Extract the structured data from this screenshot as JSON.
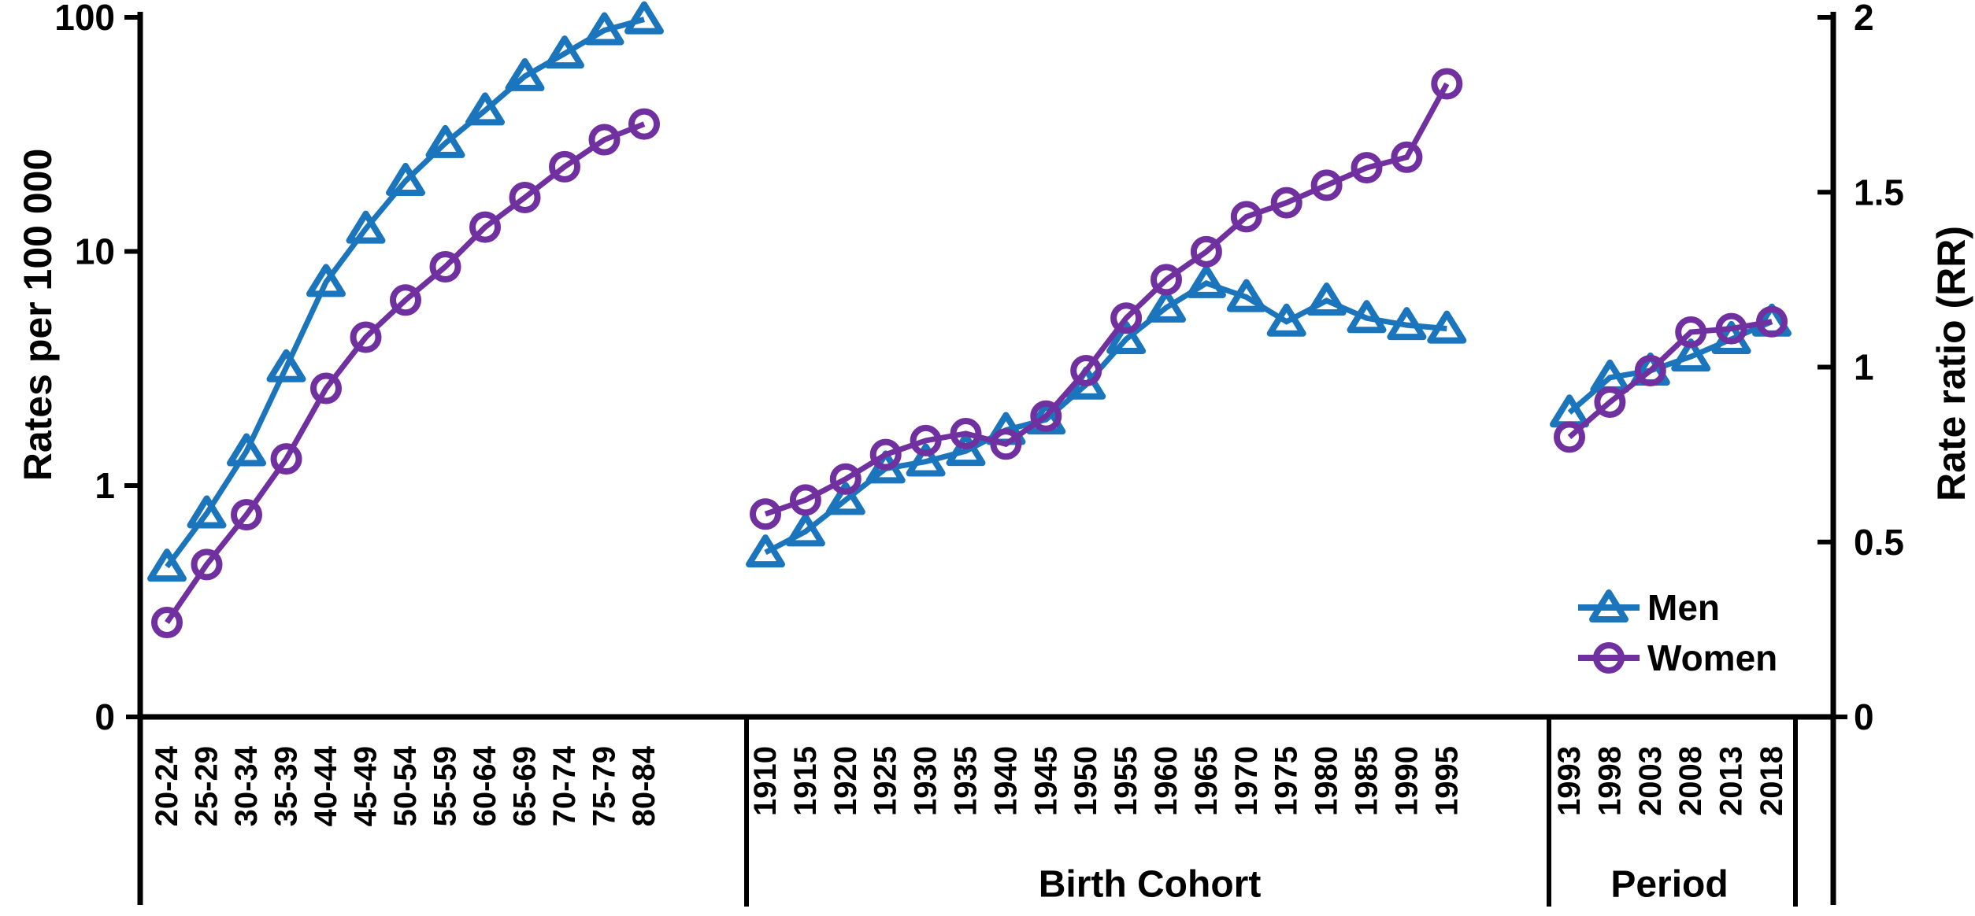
{
  "figure": {
    "left_axis_title": "Rates per 100 000",
    "right_axis_title": "Rate ratio (RR)"
  },
  "chart_data": {
    "type": "line",
    "left_axis": {
      "label": "Rates per 100 000",
      "scale": "log",
      "tick_labels": [
        "100",
        "10",
        "1",
        "0"
      ],
      "tick_values": [
        100,
        10,
        1,
        0
      ]
    },
    "right_axis": {
      "label": "Rate ratio (RR)",
      "scale": "linear",
      "tick_labels": [
        "2",
        "1.5",
        "1",
        "0.5",
        "0"
      ],
      "tick_values": [
        2,
        1.5,
        1,
        0.5,
        0
      ],
      "range": [
        0,
        2
      ]
    },
    "legend": [
      {
        "label": "Men",
        "color": "#1b75bc",
        "marker": "triangle"
      },
      {
        "label": "Women",
        "color": "#7030a0",
        "marker": "circle"
      }
    ],
    "colors": {
      "men": "#1b75bc",
      "women": "#7030a0",
      "axis": "#000000",
      "background": "#ffffff"
    },
    "panels": [
      {
        "title": "",
        "axis": "left",
        "categories": [
          "20-24",
          "25-29",
          "30-34",
          "35-39",
          "40-44",
          "45-49",
          "50-54",
          "55-59",
          "60-64",
          "65-69",
          "70-74",
          "75-79",
          "80-84"
        ],
        "series": [
          {
            "name": "Men",
            "values": [
              0.45,
              0.76,
              1.4,
              3.2,
              7.4,
              12.5,
              20,
              29,
              40,
              56,
              70,
              88,
              98
            ]
          },
          {
            "name": "Women",
            "values": [
              0.26,
              0.46,
              0.75,
              1.3,
              2.6,
              4.3,
              6.2,
              8.6,
              12.7,
              17,
              23,
              30,
              35
            ]
          }
        ]
      },
      {
        "title": "Birth Cohort",
        "axis": "right",
        "categories": [
          "1910",
          "1915",
          "1920",
          "1925",
          "1930",
          "1935",
          "1940",
          "1945",
          "1950",
          "1955",
          "1960",
          "1965",
          "1970",
          "1975",
          "1980",
          "1985",
          "1990",
          "1995"
        ],
        "series": [
          {
            "name": "Men",
            "values": [
              0.47,
              0.53,
              0.62,
              0.71,
              0.73,
              0.76,
              0.82,
              0.85,
              0.95,
              1.08,
              1.17,
              1.24,
              1.2,
              1.13,
              1.19,
              1.14,
              1.12,
              1.11
            ]
          },
          {
            "name": "Women",
            "values": [
              0.58,
              0.62,
              0.68,
              0.75,
              0.79,
              0.81,
              0.78,
              0.86,
              0.99,
              1.14,
              1.25,
              1.33,
              1.43,
              1.47,
              1.52,
              1.57,
              1.6,
              1.81
            ]
          }
        ]
      },
      {
        "title": "Period",
        "axis": "right",
        "categories": [
          "1993",
          "1998",
          "2003",
          "2008",
          "2013",
          "2018"
        ],
        "series": [
          {
            "name": "Men",
            "values": [
              0.87,
              0.97,
              0.99,
              1.03,
              1.08,
              1.13
            ]
          },
          {
            "name": "Women",
            "values": [
              0.8,
              0.9,
              0.99,
              1.1,
              1.11,
              1.13
            ]
          }
        ]
      }
    ]
  }
}
